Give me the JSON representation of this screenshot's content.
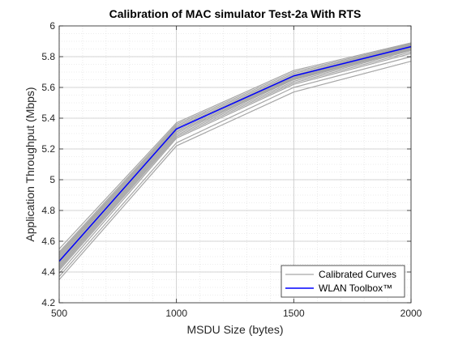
{
  "chart_data": {
    "type": "line",
    "title": "Calibration of MAC simulator Test-2a With RTS",
    "xlabel": "MSDU Size (bytes)",
    "ylabel": "Application Throughput (Mbps)",
    "x": [
      500,
      1000,
      1500,
      2000
    ],
    "xlim": [
      500,
      2000
    ],
    "ylim": [
      4.2,
      6
    ],
    "xticks": [
      "500",
      "1000",
      "1500",
      "2000"
    ],
    "yticks": [
      "4.2",
      "4.4",
      "4.6",
      "4.8",
      "5",
      "5.2",
      "5.4",
      "5.6",
      "5.8",
      "6"
    ],
    "grid": true,
    "minor_grid": true,
    "legend_position": "bottom-right",
    "legend": [
      "Calibrated Curves",
      "WLAN Toolbox™"
    ],
    "colors": {
      "calibrated": "#a6a6a6",
      "toolbox": "#0000ff"
    },
    "calibrated_series": [
      [
        4.55,
        5.37,
        5.71,
        5.89
      ],
      [
        4.53,
        5.36,
        5.7,
        5.885
      ],
      [
        4.52,
        5.35,
        5.69,
        5.88
      ],
      [
        4.51,
        5.35,
        5.69,
        5.875
      ],
      [
        4.5,
        5.34,
        5.68,
        5.87
      ],
      [
        4.49,
        5.34,
        5.68,
        5.87
      ],
      [
        4.48,
        5.33,
        5.675,
        5.865
      ],
      [
        4.47,
        5.33,
        5.67,
        5.86
      ],
      [
        4.46,
        5.32,
        5.665,
        5.86
      ],
      [
        4.45,
        5.31,
        5.66,
        5.855
      ],
      [
        4.44,
        5.31,
        5.655,
        5.85
      ],
      [
        4.43,
        5.3,
        5.65,
        5.845
      ],
      [
        4.42,
        5.29,
        5.64,
        5.84
      ],
      [
        4.41,
        5.28,
        5.63,
        5.83
      ],
      [
        4.39,
        5.27,
        5.62,
        5.82
      ],
      [
        4.37,
        5.24,
        5.6,
        5.8
      ],
      [
        4.35,
        5.22,
        5.57,
        5.77
      ]
    ],
    "toolbox_series": [
      4.47,
      5.33,
      5.675,
      5.865
    ]
  }
}
